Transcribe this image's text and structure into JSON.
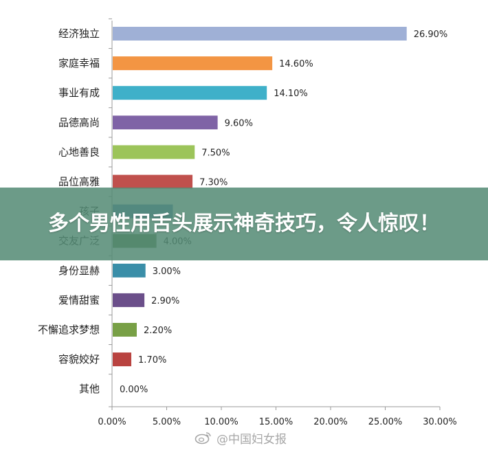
{
  "banner": {
    "headline": "多个男性用舌头展示神奇技巧，令人惊叹！"
  },
  "watermark": {
    "text": "@中国妇女报",
    "icon": "weibo-icon"
  },
  "chart_data": {
    "type": "bar",
    "orientation": "horizontal",
    "categories": [
      "经济独立",
      "家庭幸福",
      "事业有成",
      "品德高尚",
      "心地善良",
      "品位高雅",
      "孩子",
      "交友广泛",
      "身份显赫",
      "爱情甜蜜",
      "不懈追求梦想",
      "容貌姣好",
      "其他"
    ],
    "values": [
      26.9,
      14.6,
      14.1,
      9.6,
      7.5,
      7.3,
      5.5,
      4.0,
      3.0,
      2.9,
      2.2,
      1.7,
      0.0
    ],
    "value_labels": [
      "26.90%",
      "14.60%",
      "14.10%",
      "9.60%",
      "7.50%",
      "7.30%",
      "",
      "4.00%",
      "3.00%",
      "2.90%",
      "2.20%",
      "1.70%",
      "0.00%"
    ],
    "colors": [
      "#9fb0d6",
      "#f39543",
      "#3fb0c9",
      "#7f63a6",
      "#9cc45a",
      "#c0504d",
      "#4f81bd",
      "#5e7d4a",
      "#3a8ea8",
      "#6b4f8a",
      "#78a046",
      "#b94340",
      "#4f81bd"
    ],
    "xlim": [
      0,
      30
    ],
    "xticks": [
      0,
      5,
      10,
      15,
      20,
      25,
      30
    ],
    "xtick_labels": [
      "0.00%",
      "5.00%",
      "10.00%",
      "15.00%",
      "20.00%",
      "25.00%",
      "30.00%"
    ],
    "xlabel": "",
    "ylabel": "",
    "grid": false,
    "legend": "none"
  }
}
